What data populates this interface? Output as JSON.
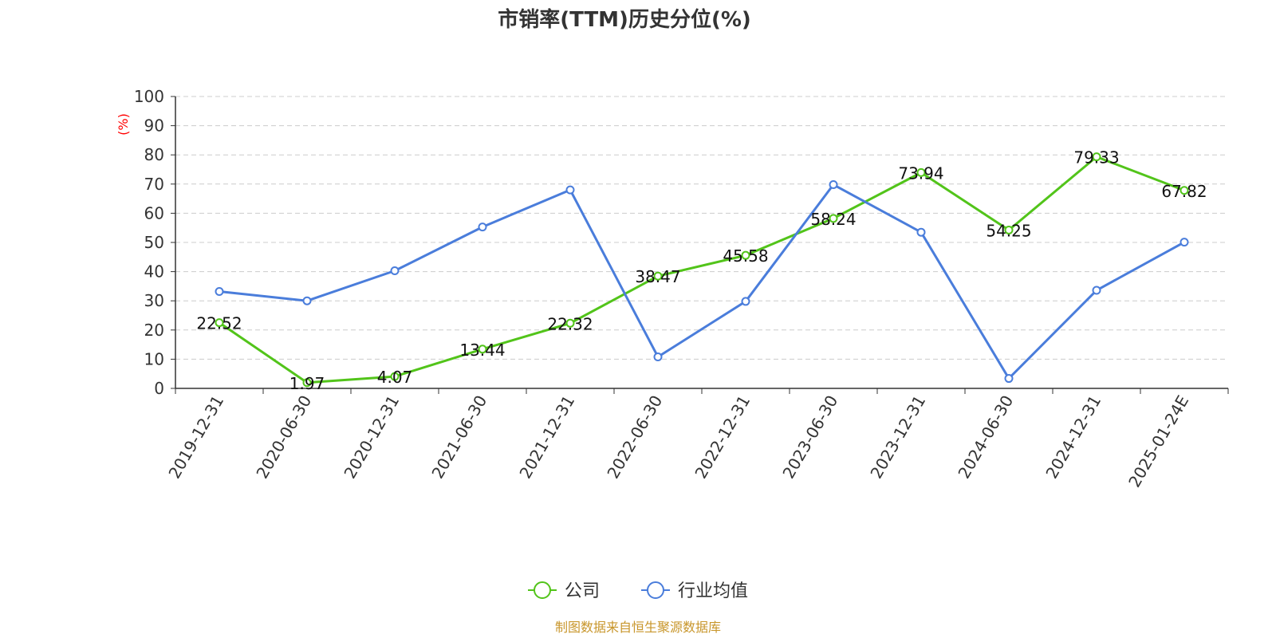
{
  "chart_data": {
    "type": "line",
    "title": "市销率(TTM)历史分位(%)",
    "ylabel": "(%)",
    "ylim": [
      0,
      100
    ],
    "yticks": [
      0,
      10,
      20,
      30,
      40,
      50,
      60,
      70,
      80,
      90,
      100
    ],
    "categories": [
      "2019-12-31",
      "2020-06-30",
      "2020-12-31",
      "2021-06-30",
      "2021-12-31",
      "2022-06-30",
      "2022-12-31",
      "2023-06-30",
      "2023-12-31",
      "2024-06-30",
      "2024-12-31",
      "2025-01-24E"
    ],
    "grid": true,
    "legend_position": "bottom-center",
    "series": [
      {
        "name": "公司",
        "color": "#52c41a",
        "values": [
          22.52,
          1.97,
          4.07,
          13.44,
          22.32,
          38.47,
          45.58,
          58.24,
          73.94,
          54.25,
          79.33,
          67.82
        ],
        "data_labels": [
          "22.52",
          "1.97",
          "4.07",
          "13.44",
          "22.32",
          "38.47",
          "45.58",
          "58.24",
          "73.94",
          "54.25",
          "79.33",
          "67.82"
        ]
      },
      {
        "name": "行业均值",
        "color": "#4a7ddb",
        "values": [
          33.2,
          30.0,
          40.3,
          55.3,
          68.0,
          10.8,
          29.8,
          69.8,
          53.5,
          3.4,
          33.6,
          50.1
        ]
      }
    ],
    "source": "制图数据来自恒生聚源数据库",
    "source_color": "#c8962b",
    "ylabel_color": "#ff0000"
  }
}
